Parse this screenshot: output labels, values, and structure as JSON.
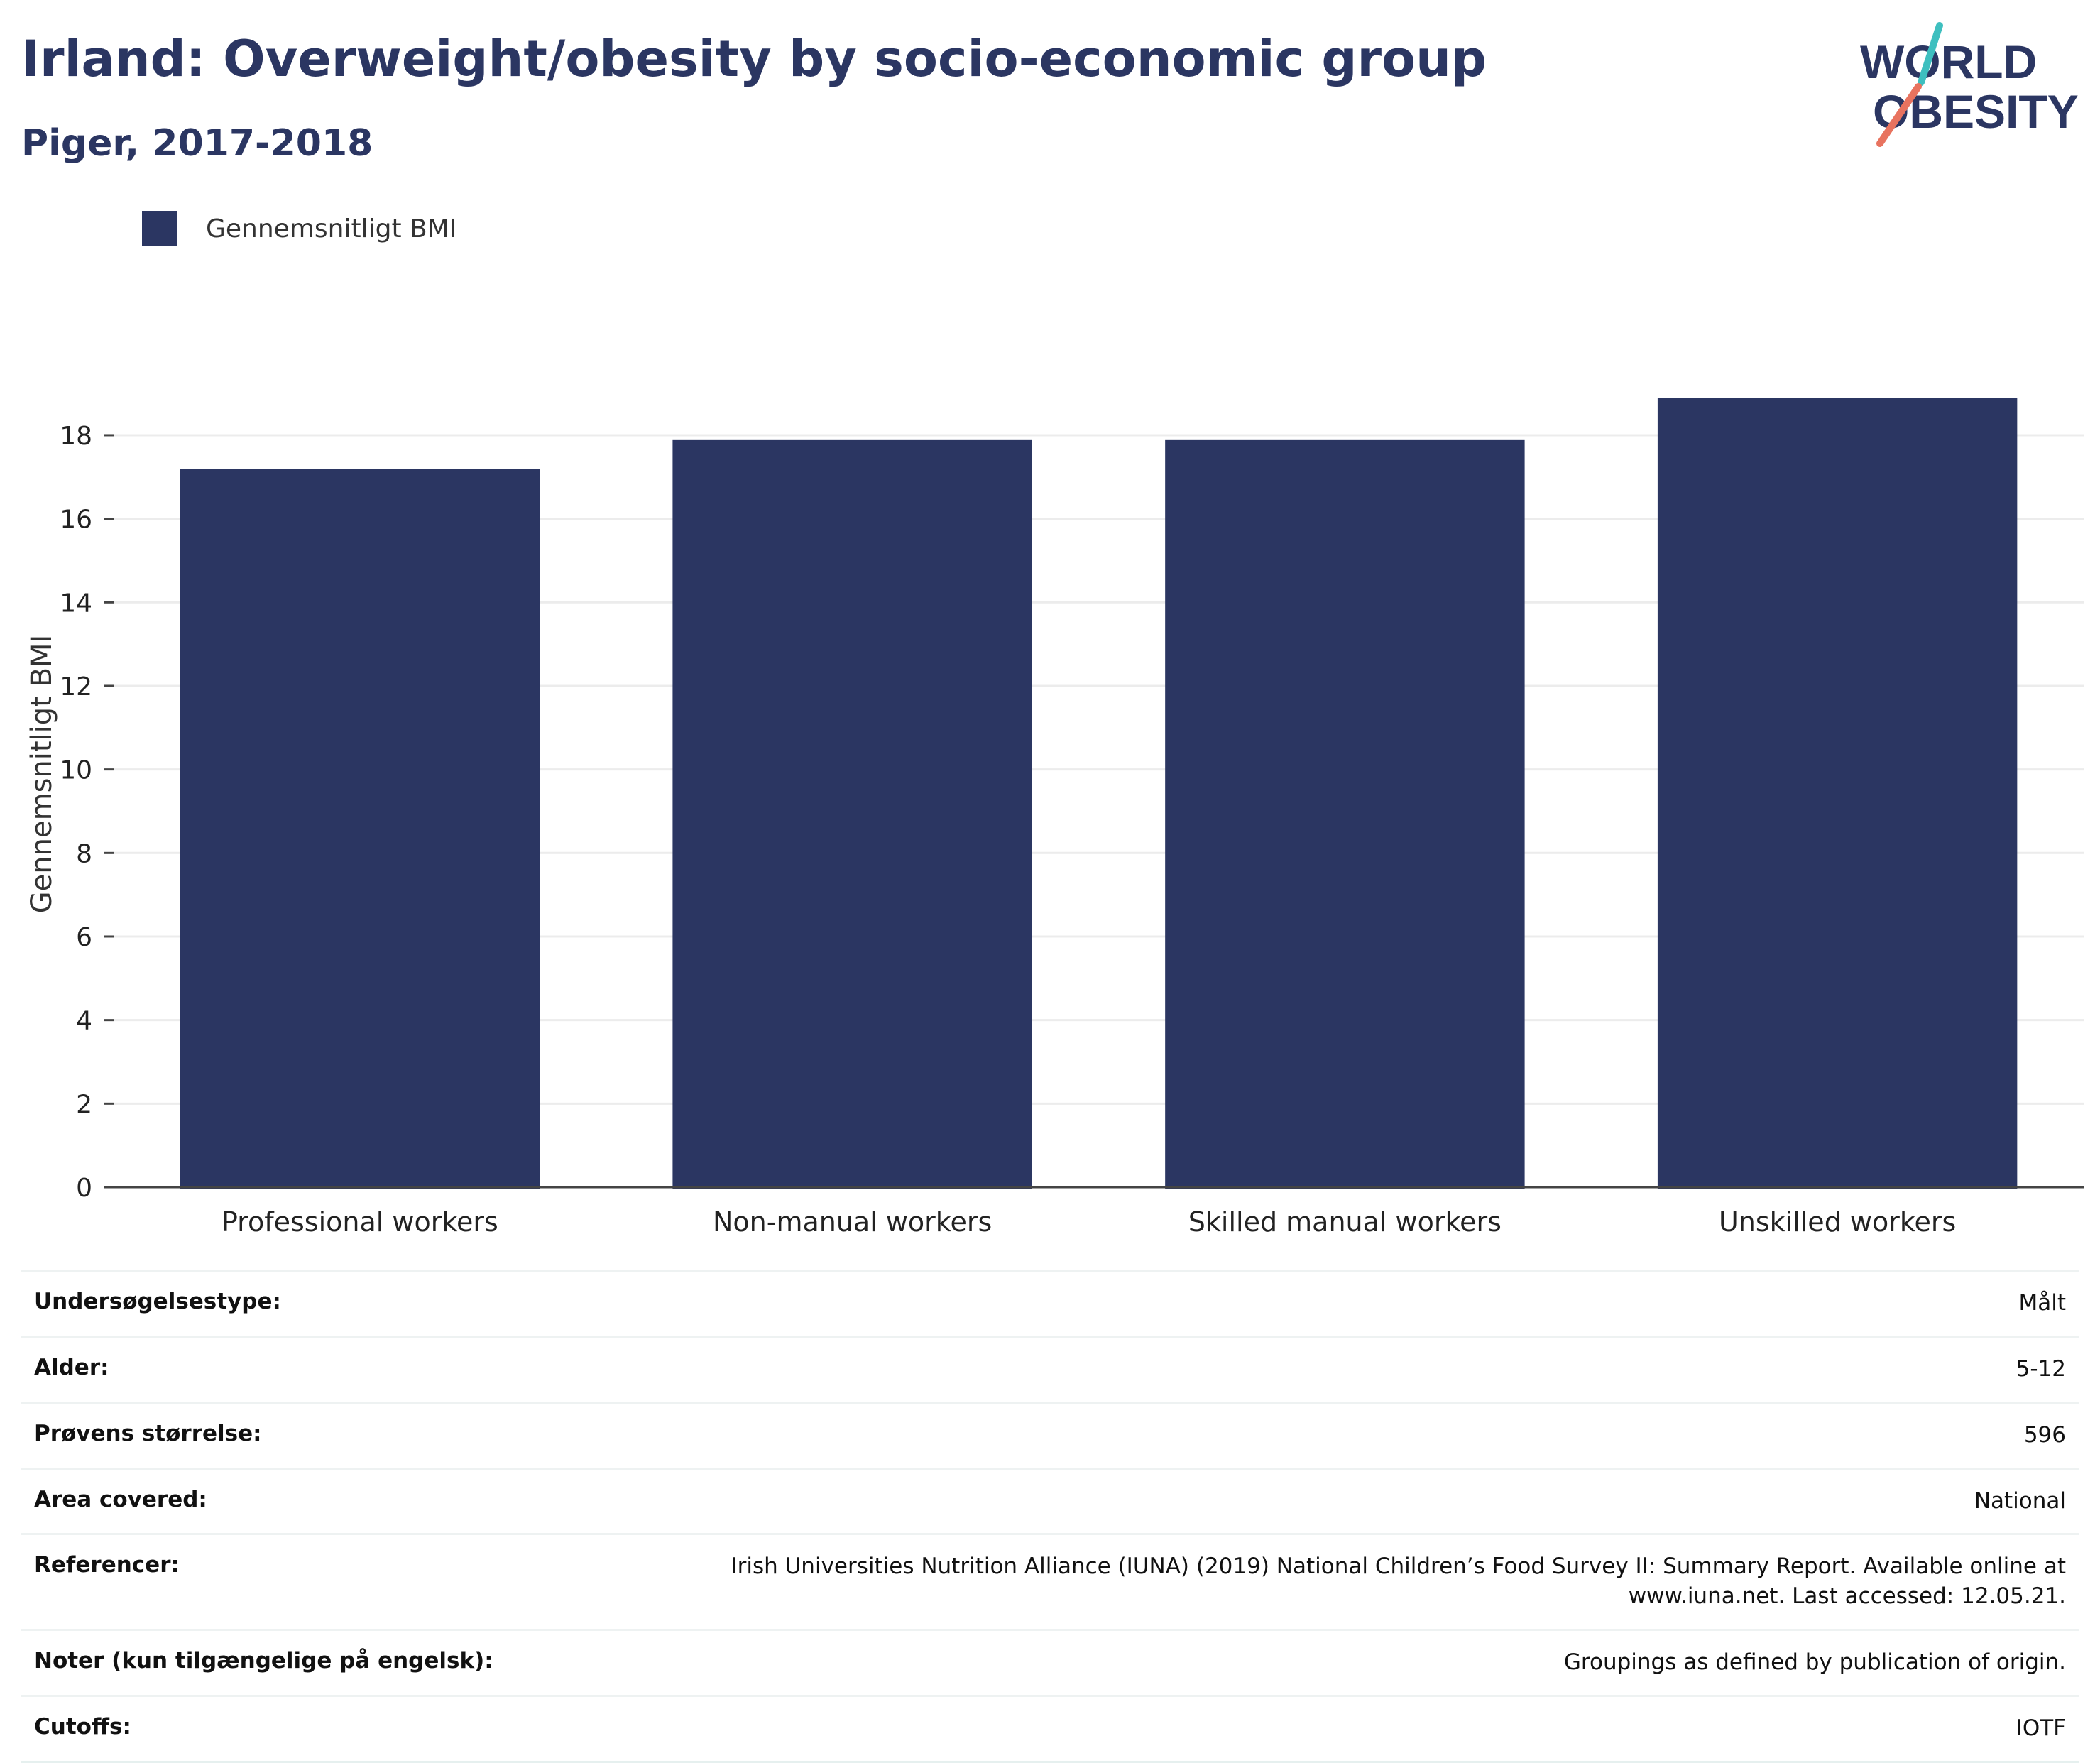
{
  "header": {
    "title": "Irland: Overweight/obesity by socio-economic group",
    "subtitle": "Piger, 2017-2018"
  },
  "logo": {
    "line1": "WORLD",
    "line2": "OBESITY",
    "accent_teal": "#3ebfbf",
    "accent_coral": "#e8735f"
  },
  "chart_data": {
    "type": "bar",
    "categories": [
      "Professional workers",
      "Non-manual workers",
      "Skilled manual workers",
      "Unskilled workers"
    ],
    "series": [
      {
        "name": "Gennemsnitligt BMI",
        "values": [
          17.2,
          17.9,
          17.9,
          18.9
        ],
        "color": "#2b3662"
      }
    ],
    "ylabel": "Gennemsnitligt BMI",
    "ylim": [
      0,
      18.9
    ],
    "yticks": [
      0,
      2,
      4,
      6,
      8,
      10,
      12,
      14,
      16,
      18
    ],
    "grid": true,
    "legend": "top-left"
  },
  "info": [
    {
      "label": "Undersøgelsestype:",
      "value": "Målt"
    },
    {
      "label": "Alder:",
      "value": "5-12"
    },
    {
      "label": "Prøvens størrelse:",
      "value": "596"
    },
    {
      "label": "Area covered:",
      "value": "National"
    },
    {
      "label": "Referencer:",
      "value": "Irish Universities Nutrition Alliance (IUNA) (2019) National Children’s Food Survey II: Summary Report. Available online at www.iuna.net. Last accessed: 12.05.21."
    },
    {
      "label": "Noter (kun tilgængelige på engelsk):",
      "value": "Groupings as defined by publication of origin."
    },
    {
      "label": "Cutoffs:",
      "value": "IOTF"
    }
  ]
}
